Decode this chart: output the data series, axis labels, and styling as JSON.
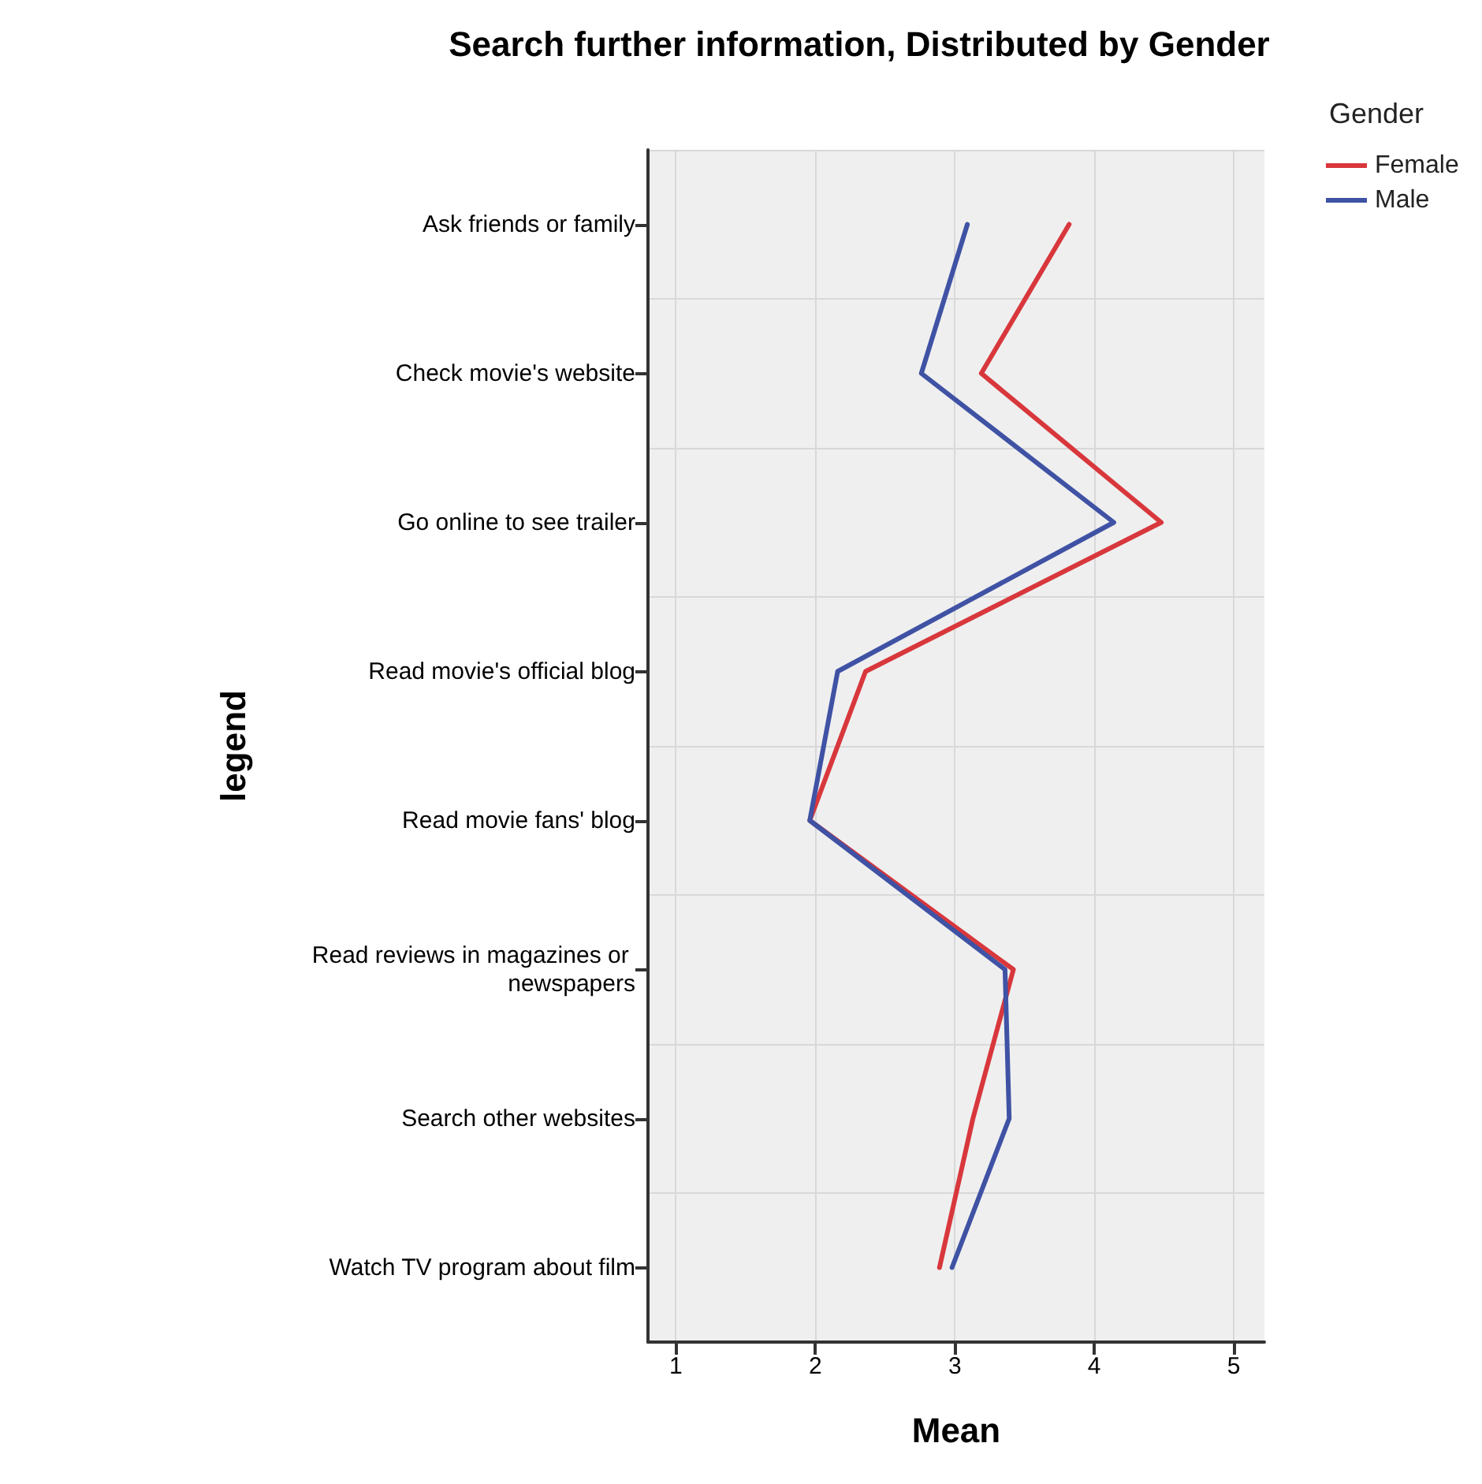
{
  "chart_data": {
    "type": "line",
    "orientation": "horizontal",
    "title": "Search further information, Distributed by Gender",
    "xlabel": "Mean",
    "ylabel": "legend",
    "legend_title": "Gender",
    "legend": "top right",
    "grid": true,
    "marker": "none",
    "line_style": "solid",
    "categories": [
      "Ask friends or family",
      "Check movie's website",
      "Go online to see trailer",
      "Read movie's official blog",
      "Read movie fans' blog",
      "Read reviews in magazines or newspapers",
      "Search other websites",
      "Watch TV program about film"
    ],
    "xlim": [
      0.8,
      5.22
    ],
    "xticks": [
      1,
      2,
      3,
      4,
      5
    ],
    "series": [
      {
        "name": "Female",
        "color": "#d8373c",
        "values": [
          3.82,
          3.19,
          4.48,
          2.36,
          1.96,
          3.42,
          3.13,
          2.89
        ]
      },
      {
        "name": "Male",
        "color": "#3f52a4",
        "values": [
          3.09,
          2.76,
          4.14,
          2.16,
          1.96,
          3.36,
          3.39,
          2.98
        ]
      }
    ]
  }
}
